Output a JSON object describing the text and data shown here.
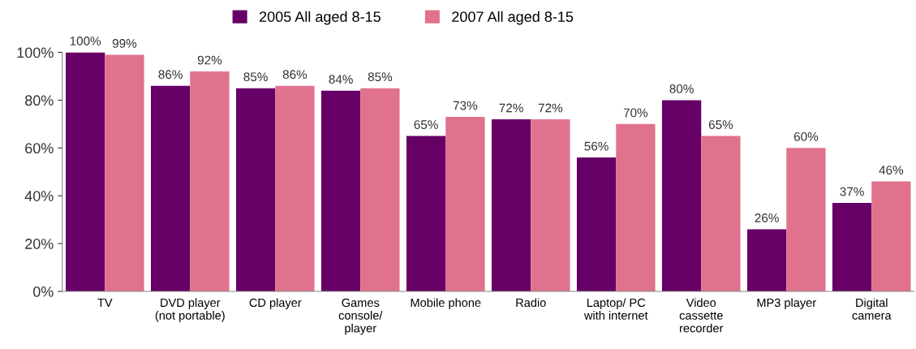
{
  "chart_data": {
    "type": "bar",
    "categories": [
      "TV",
      "DVD player\n(not portable)",
      "CD player",
      "Games\nconsole/\nplayer",
      "Mobile phone",
      "Radio",
      "Laptop/ PC\nwith internet",
      "Video\ncassette\nrecorder",
      "MP3 player",
      "Digital\ncamera"
    ],
    "series": [
      {
        "name": "2005 All aged 8-15",
        "color": "#660066",
        "values": [
          100,
          86,
          85,
          84,
          65,
          72,
          56,
          80,
          26,
          37
        ],
        "value_labels": [
          "100%",
          "86%",
          "85%",
          "84%",
          "65%",
          "72%",
          "56%",
          "80%",
          "26%",
          "37%"
        ]
      },
      {
        "name": "2007 All aged 8-15",
        "color": "#e0728e",
        "values": [
          99,
          92,
          86,
          85,
          73,
          72,
          70,
          65,
          60,
          46
        ],
        "value_labels": [
          "99%",
          "92%",
          "86%",
          "85%",
          "73%",
          "72%",
          "70%",
          "65%",
          "60%",
          "46%"
        ]
      }
    ],
    "ylim": [
      0,
      100
    ],
    "yticks": [
      {
        "value": 0,
        "label": "0%"
      },
      {
        "value": 20,
        "label": "20%"
      },
      {
        "value": 40,
        "label": "40%"
      },
      {
        "value": 60,
        "label": "60%"
      },
      {
        "value": 80,
        "label": "80%"
      },
      {
        "value": 100,
        "label": "100%"
      }
    ],
    "grid": false,
    "legend": "top"
  }
}
